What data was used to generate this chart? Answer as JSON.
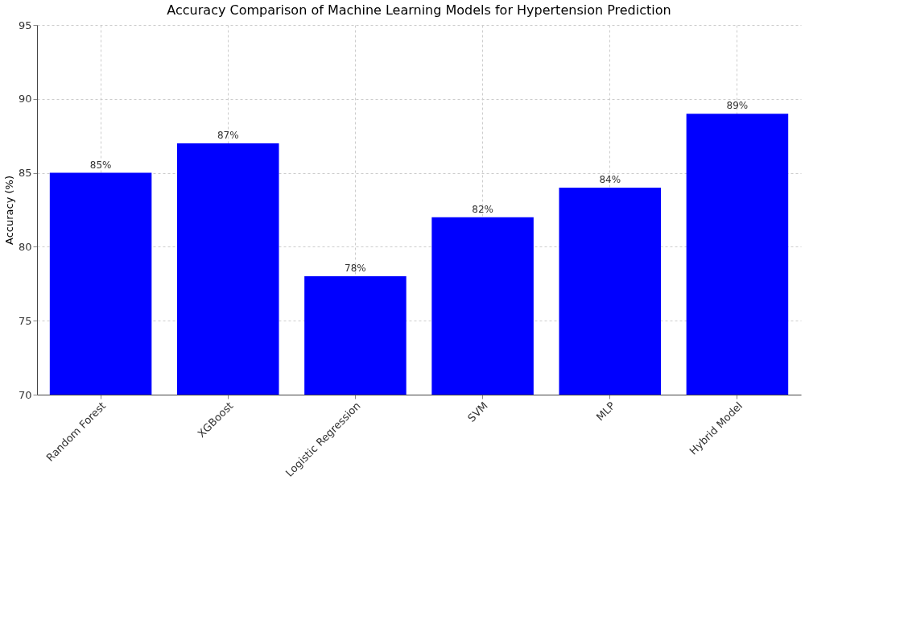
{
  "chart_data": {
    "type": "bar",
    "title": "Accuracy Comparison of Machine Learning Models for Hypertension Prediction",
    "ylabel": "Accuracy (%)",
    "categories": [
      "Random Forest",
      "XGBoost",
      "Logistic Regression",
      "SVM",
      "MLP",
      "Hybrid Model"
    ],
    "values": [
      85,
      87,
      78,
      82,
      84,
      89
    ],
    "value_labels": [
      "85%",
      "87%",
      "78%",
      "82%",
      "84%",
      "89%"
    ],
    "color": "#0000ff",
    "ylim": [
      70,
      95
    ],
    "yticks": [
      70,
      75,
      80,
      85,
      90,
      95
    ],
    "grid": true
  }
}
